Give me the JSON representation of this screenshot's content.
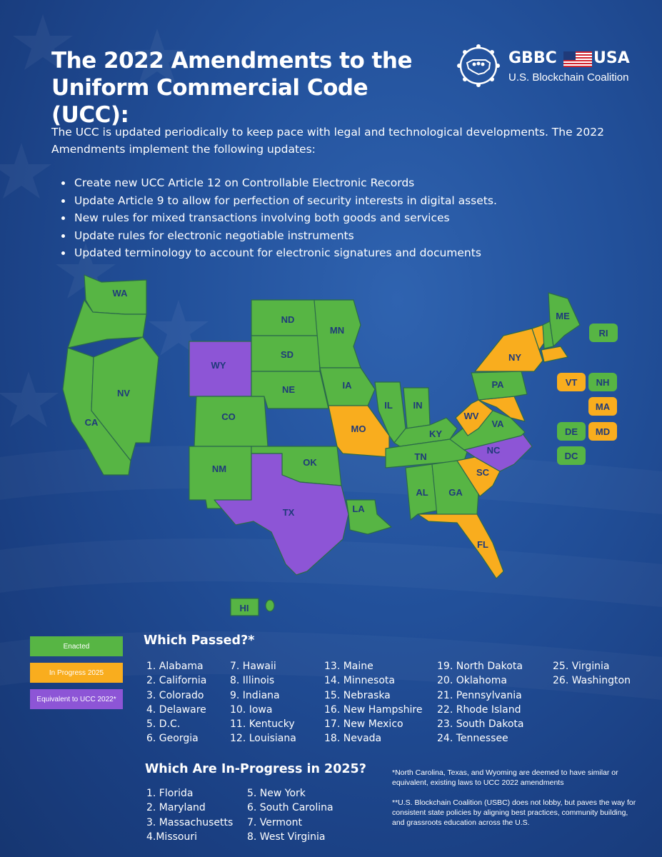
{
  "title": "The 2022 Amendments to the Uniform Commercial Code (UCC):",
  "logo": {
    "name": "GBBC",
    "country": "USA",
    "subtitle": "U.S. Blockchain Coalition"
  },
  "intro": "The UCC is updated periodically to keep pace with legal and technological developments. The 2022 Amendments implement the following updates:",
  "bullets": [
    "Create new UCC Article 12 on Controllable Electronic Records",
    "Update Article 9 to allow for perfection of security interests in digital assets.",
    "New rules for mixed transactions involving both goods and services",
    "Update rules for electronic negotiable instruments",
    "Updated terminology to account for electronic signatures and documents"
  ],
  "colors": {
    "enacted": "#57b544",
    "in_progress": "#f9ad1e",
    "equivalent": "#8d55d6",
    "background": "#22509a"
  },
  "map_labels": {
    "WA": "WA",
    "OR": "",
    "CA": "CA",
    "NV": "NV",
    "WY": "WY",
    "CO": "CO",
    "NM": "NM",
    "ND": "ND",
    "SD": "SD",
    "NE": "NE",
    "MN": "MN",
    "IA": "IA",
    "MO": "MO",
    "OK": "OK",
    "TX": "TX",
    "LA": "LA",
    "IL": "IL",
    "IN": "IN",
    "KY": "KY",
    "TN": "TN",
    "AL": "AL",
    "GA": "GA",
    "FL": "FL",
    "SC": "SC",
    "NC": "NC",
    "VA": "VA",
    "WV": "WV",
    "PA": "PA",
    "NY": "NY",
    "ME": "ME",
    "HI": "HI"
  },
  "small_states": [
    {
      "label": "RI",
      "status": "enacted"
    },
    {
      "label": "VT",
      "status": "in_progress"
    },
    {
      "label": "NH",
      "status": "enacted"
    },
    {
      "label": "MA",
      "status": "in_progress"
    },
    {
      "label": "DE",
      "status": "enacted"
    },
    {
      "label": "MD",
      "status": "in_progress"
    },
    {
      "label": "DC",
      "status": "enacted"
    }
  ],
  "legend": [
    {
      "label": "Enacted",
      "status": "enacted"
    },
    {
      "label": "In Progress 2025",
      "status": "in_progress"
    },
    {
      "label": "Equivalent to UCC 2022*",
      "status": "equivalent"
    }
  ],
  "passed": {
    "title": "Which Passed?*",
    "columns": [
      [
        "1. Alabama",
        "2. California",
        "3. Colorado",
        "4. Delaware",
        "5. D.C.",
        "6. Georgia"
      ],
      [
        "7. Hawaii",
        "8. Illinois",
        "9. Indiana",
        "10. Iowa",
        "11. Kentucky",
        "12. Louisiana"
      ],
      [
        "13. Maine",
        "14. Minnesota",
        "15. Nebraska",
        "16. New Hampshire",
        "17. New Mexico",
        "18. Nevada"
      ],
      [
        "19. North Dakota",
        "20. Oklahoma",
        "21. Pennsylvania",
        "22. Rhode Island",
        "23. South Dakota",
        "24. Tennessee"
      ],
      [
        "25. Virginia",
        "26. Washington"
      ]
    ]
  },
  "in_progress": {
    "title": "Which Are In-Progress in 2025?",
    "columns": [
      [
        "1. Florida",
        "2. Maryland",
        "3. Massachusetts",
        "4.Missouri"
      ],
      [
        "5. New York",
        "6. South Carolina",
        "7. Vermont",
        "8. West Virginia"
      ]
    ]
  },
  "notes": [
    "*North Carolina, Texas, and Wyoming are deemed to have similar or equivalent, existing laws to UCC 2022 amendments",
    "**U.S. Blockchain Coalition (USBC) does not lobby, but paves the way for consistent state policies by aligning best practices, community building, and grassroots education across the U.S."
  ]
}
